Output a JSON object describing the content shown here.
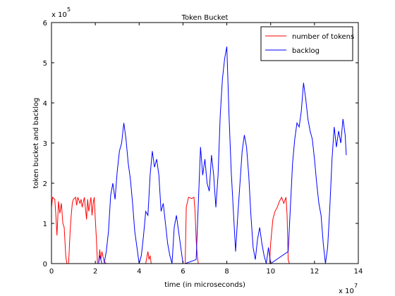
{
  "chart_data": {
    "type": "line",
    "title": "Token Bucket",
    "xlabel": "time (in microseconds)",
    "ylabel": "token bucket and backlog",
    "x_multiplier_label": "x 10",
    "x_multiplier_exp": "7",
    "y_multiplier_label": "x 10",
    "y_multiplier_exp": "5",
    "xlim": [
      0,
      14
    ],
    "ylim": [
      0,
      6
    ],
    "xticks": [
      0,
      2,
      4,
      6,
      8,
      10,
      12,
      14
    ],
    "yticks": [
      0,
      1,
      2,
      3,
      4,
      5,
      6
    ],
    "grid": false,
    "legend_position": "top-right",
    "series": [
      {
        "name": "number of tokens",
        "color": "#ff0000",
        "x": [
          0,
          0.05,
          0.15,
          0.2,
          0.25,
          0.32,
          0.38,
          0.45,
          0.52,
          0.58,
          0.65,
          0.7,
          0.78,
          0.85,
          0.9,
          0.95,
          1.0,
          1.1,
          1.15,
          1.2,
          1.3,
          1.35,
          1.4,
          1.5,
          1.6,
          1.65,
          1.7,
          1.8,
          1.85,
          1.9,
          1.95,
          2.0,
          2.05,
          2.1,
          2.15,
          2.2,
          2.25,
          2.3,
          2.4,
          2.5,
          2.6,
          4.3,
          4.35,
          4.4,
          4.45,
          4.5,
          4.55,
          4.65,
          6.1,
          6.15,
          6.25,
          6.4,
          6.5,
          6.55,
          6.6,
          6.65,
          6.7,
          9.95,
          10.0,
          10.1,
          10.2,
          10.3,
          10.4,
          10.5,
          10.6,
          10.7,
          10.75,
          10.8,
          10.85,
          13.5
        ],
        "y": [
          1.4,
          1.65,
          1.6,
          1.2,
          0.7,
          1.55,
          1.25,
          1.5,
          1.0,
          0.9,
          0.2,
          0.0,
          0.0,
          0.8,
          1.2,
          1.5,
          1.6,
          1.65,
          1.45,
          1.65,
          1.5,
          1.6,
          1.4,
          1.65,
          1.1,
          1.6,
          1.3,
          1.65,
          1.2,
          1.5,
          1.65,
          1.1,
          0.6,
          0.0,
          0.0,
          0.35,
          0.1,
          0.3,
          0.05,
          0.0,
          0.0,
          0.0,
          0.15,
          0.3,
          0.1,
          0.2,
          0.0,
          0.0,
          0.0,
          1.4,
          1.65,
          1.62,
          1.65,
          1.3,
          0.6,
          0.2,
          0.0,
          0.0,
          0.5,
          1.1,
          1.3,
          1.4,
          1.55,
          1.65,
          1.5,
          1.65,
          1.2,
          0.1,
          0.0,
          0.0
        ]
      },
      {
        "name": "backlog",
        "color": "#0000ff",
        "x": [
          2.15,
          2.2,
          2.3,
          2.4,
          2.5,
          2.6,
          2.7,
          2.8,
          2.9,
          3.0,
          3.1,
          3.2,
          3.3,
          3.4,
          3.5,
          3.6,
          3.7,
          3.8,
          3.9,
          4.0,
          4.1,
          4.2,
          4.3,
          4.4,
          4.5,
          4.6,
          4.7,
          4.8,
          4.9,
          5.0,
          5.1,
          5.2,
          5.3,
          5.4,
          5.5,
          5.6,
          5.7,
          5.8,
          5.9,
          6.0,
          6.1,
          6.6,
          6.7,
          6.8,
          6.9,
          7.0,
          7.1,
          7.2,
          7.3,
          7.4,
          7.5,
          7.6,
          7.7,
          7.8,
          7.9,
          8.0,
          8.1,
          8.2,
          8.3,
          8.4,
          8.5,
          8.6,
          8.7,
          8.8,
          8.9,
          9.0,
          9.1,
          9.2,
          9.3,
          9.4,
          9.5,
          9.6,
          9.7,
          9.8,
          9.9,
          10.0,
          10.8,
          10.9,
          11.0,
          11.1,
          11.2,
          11.3,
          11.4,
          11.5,
          11.6,
          11.7,
          11.8,
          11.9,
          12.0,
          12.1,
          12.2,
          12.3,
          12.4,
          12.5,
          12.6,
          12.7,
          12.8,
          12.9,
          13.0,
          13.1,
          13.2,
          13.3,
          13.4,
          13.45
        ],
        "y": [
          0.0,
          0.2,
          0.0,
          0.0,
          0.3,
          0.8,
          1.7,
          2.0,
          1.6,
          2.3,
          2.8,
          3.0,
          3.5,
          3.1,
          2.5,
          2.1,
          1.5,
          0.8,
          0.4,
          0.0,
          0.2,
          0.7,
          1.3,
          1.2,
          2.2,
          2.8,
          2.4,
          2.6,
          2.2,
          1.3,
          1.5,
          1.0,
          0.5,
          0.2,
          0.0,
          0.9,
          1.2,
          0.8,
          0.4,
          0.0,
          0.0,
          0.1,
          1.5,
          2.9,
          2.2,
          2.6,
          2.0,
          1.8,
          2.7,
          2.2,
          1.4,
          2.2,
          3.7,
          4.6,
          5.1,
          5.4,
          3.7,
          2.3,
          1.3,
          0.3,
          1.2,
          2.0,
          2.8,
          3.2,
          2.9,
          2.2,
          1.2,
          0.4,
          0.1,
          0.6,
          0.9,
          0.5,
          0.2,
          0.0,
          0.4,
          0.0,
          0.3,
          1.4,
          2.5,
          3.1,
          3.5,
          3.4,
          3.8,
          4.5,
          4.1,
          3.6,
          3.3,
          3.1,
          2.6,
          2.0,
          1.5,
          1.2,
          0.5,
          0.0,
          0.4,
          1.4,
          2.6,
          3.4,
          2.9,
          3.3,
          3.0,
          3.6,
          3.2,
          2.7
        ]
      }
    ]
  }
}
